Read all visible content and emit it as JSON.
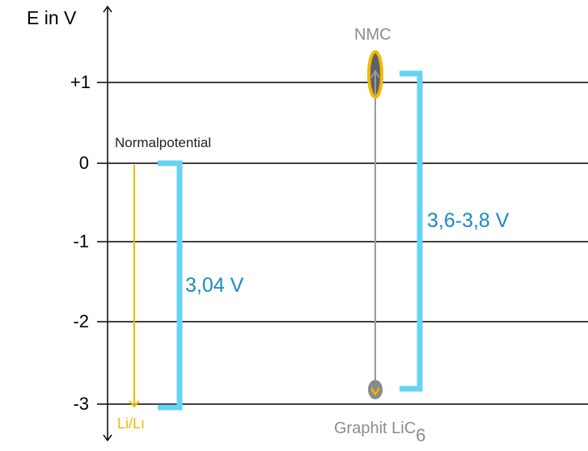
{
  "axis": {
    "label": "E in V",
    "ticks": [
      "+1",
      "0",
      "-1",
      "-2",
      "-3"
    ]
  },
  "labels": {
    "normalpotential": "Normalpotential",
    "li_ref": "Li/Lı",
    "voltage_left": "3,04 V",
    "voltage_right": "3,6-3,8 V",
    "cathode": "NMC",
    "anode": "Graphit LiC",
    "anode_subscript": "6"
  },
  "colors": {
    "bracket": "#66d3f5",
    "voltage_text": "#1a8ac4",
    "arrow": "#f3b700",
    "electrode": "#8a8a8a",
    "label_gray": "#8c8c8c"
  }
}
